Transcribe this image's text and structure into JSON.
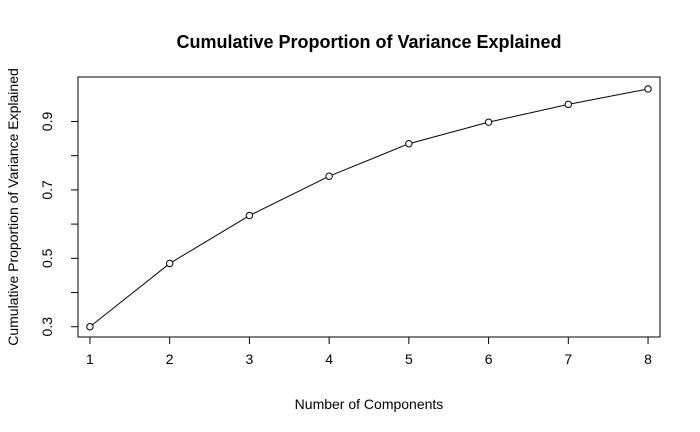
{
  "chart_data": {
    "type": "line",
    "title": "Cumulative Proportion of Variance Explained",
    "xlabel": "Number of Components",
    "ylabel": "Cumulative Proportion of Variance Explained",
    "x": [
      1,
      2,
      3,
      4,
      5,
      6,
      7,
      8
    ],
    "series": [
      {
        "values": [
          0.3,
          0.485,
          0.625,
          0.74,
          0.835,
          0.898,
          0.95,
          0.995
        ]
      }
    ],
    "xlim": [
      0.85,
      8.15
    ],
    "ylim": [
      0.27,
      1.03
    ],
    "x_ticks": [
      1,
      2,
      3,
      4,
      5,
      6,
      7,
      8
    ],
    "y_ticks_all": [
      0.3,
      0.4,
      0.5,
      0.6,
      0.7,
      0.8,
      0.9
    ],
    "y_tick_labels": [
      "0.3",
      "0.5",
      "0.7",
      "0.9"
    ],
    "grid": false,
    "legend": "none",
    "point_style": "open-circle"
  }
}
